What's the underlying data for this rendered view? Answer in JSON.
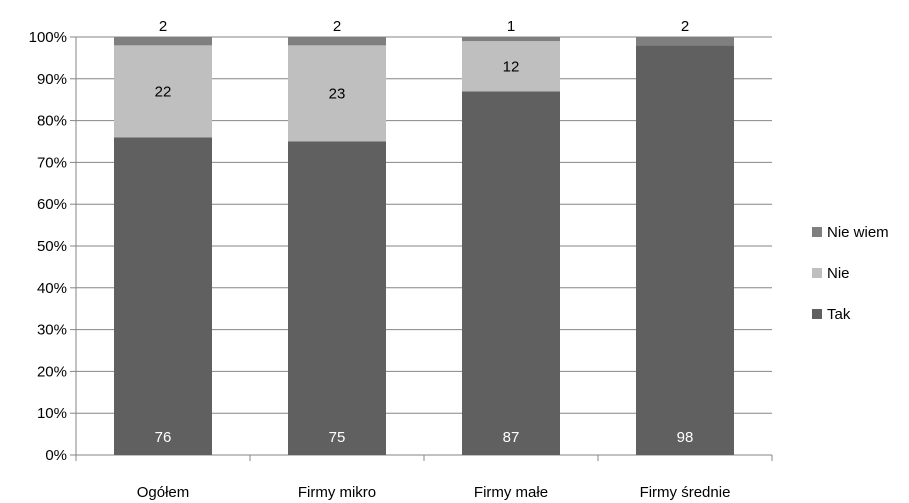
{
  "chart_data": {
    "type": "bar",
    "stacked": true,
    "percent": true,
    "categories": [
      "Ogółem",
      "Firmy mikro",
      "Firmy małe",
      "Firmy średnie"
    ],
    "series": [
      {
        "name": "Tak",
        "values": [
          76,
          75,
          87,
          98
        ],
        "color": "#606060",
        "label_color": "#ffffff"
      },
      {
        "name": "Nie",
        "values": [
          22,
          23,
          12,
          0
        ],
        "color": "#bfbfbf",
        "label_color": "#000000"
      },
      {
        "name": "Nie wiem",
        "values": [
          2,
          2,
          1,
          2
        ],
        "color": "#7f7f7f",
        "label_color": "#000000"
      }
    ],
    "data_labels": [
      [
        "76",
        "22",
        "2"
      ],
      [
        "75",
        "23",
        "2"
      ],
      [
        "87",
        "12",
        "1"
      ],
      [
        "98",
        "",
        "2"
      ]
    ],
    "yticks": [
      "0%",
      "10%",
      "20%",
      "30%",
      "40%",
      "50%",
      "60%",
      "70%",
      "80%",
      "90%",
      "100%"
    ],
    "ylim": [
      0,
      100
    ],
    "grid": true,
    "legend": {
      "position": "right",
      "order": [
        "Nie wiem",
        "Nie",
        "Tak"
      ]
    },
    "title": "",
    "xlabel": "",
    "ylabel": ""
  }
}
